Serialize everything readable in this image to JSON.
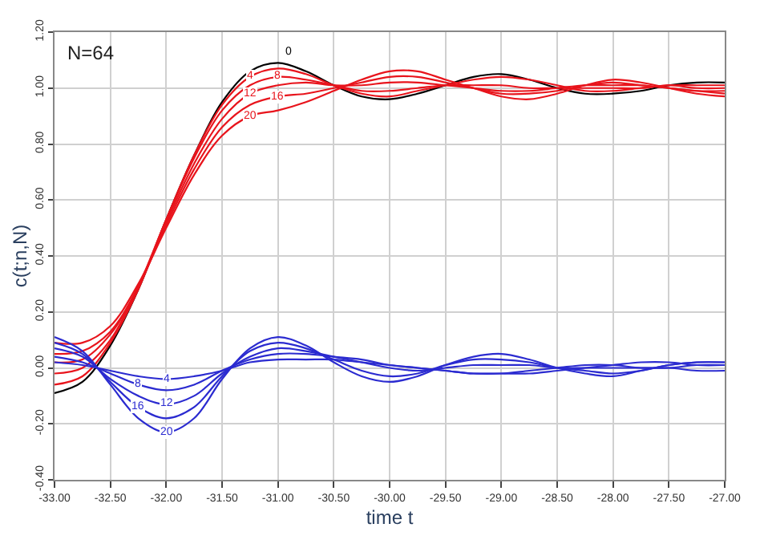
{
  "chart_data": {
    "type": "line",
    "xlabel": "time t",
    "ylabel": "c(t;n,N)",
    "annotations": [
      "N=64"
    ],
    "x": [
      -33,
      -32.75,
      -32.5,
      -32.25,
      -32,
      -31.75,
      -31.5,
      -31.25,
      -31,
      -30.75,
      -30.5,
      -30.25,
      -30,
      -29.75,
      -29.5,
      -29.25,
      -29,
      -28.75,
      -28.5,
      -28.25,
      -28,
      -27.75,
      -27.5,
      -27.25,
      -27
    ],
    "series": [
      {
        "name": "0",
        "color": "#000000",
        "values": [
          -0.09,
          -0.05,
          0.08,
          0.28,
          0.53,
          0.76,
          0.95,
          1.06,
          1.09,
          1.06,
          1.01,
          0.97,
          0.96,
          0.98,
          1.01,
          1.04,
          1.05,
          1.03,
          1.0,
          0.98,
          0.98,
          0.99,
          1.01,
          1.02,
          1.02
        ]
      },
      {
        "name": "4",
        "color": "#e8141c",
        "values": [
          -0.06,
          -0.03,
          0.09,
          0.28,
          0.53,
          0.76,
          0.94,
          1.04,
          1.07,
          1.05,
          1.01,
          0.98,
          0.97,
          0.99,
          1.01,
          1.03,
          1.04,
          1.03,
          1.01,
          0.99,
          0.99,
          1.0,
          1.01,
          1.01,
          1.01
        ]
      },
      {
        "name": "8",
        "color": "#e8141c",
        "values": [
          -0.02,
          0.0,
          0.1,
          0.29,
          0.53,
          0.75,
          0.92,
          1.01,
          1.04,
          1.03,
          1.01,
          0.99,
          0.99,
          1.0,
          1.01,
          1.01,
          1.01,
          1.0,
          1.0,
          1.0,
          1.0,
          1.0,
          1.01,
          1.0,
          1.0
        ]
      },
      {
        "name": "12",
        "color": "#e8141c",
        "values": [
          0.02,
          0.03,
          0.12,
          0.29,
          0.52,
          0.73,
          0.89,
          0.98,
          1.01,
          1.02,
          1.01,
          1.01,
          1.02,
          1.02,
          1.01,
          1.0,
          0.99,
          0.99,
          1.0,
          1.01,
          1.01,
          1.01,
          1.0,
          0.99,
          0.99
        ]
      },
      {
        "name": "16",
        "color": "#e8141c",
        "values": [
          0.05,
          0.06,
          0.13,
          0.29,
          0.51,
          0.71,
          0.86,
          0.94,
          0.97,
          0.98,
          1.0,
          1.02,
          1.04,
          1.04,
          1.02,
          1.0,
          0.98,
          0.98,
          0.99,
          1.01,
          1.02,
          1.01,
          1.0,
          0.99,
          0.98
        ]
      },
      {
        "name": "20",
        "color": "#e8141c",
        "values": [
          0.09,
          0.09,
          0.15,
          0.3,
          0.5,
          0.69,
          0.83,
          0.9,
          0.92,
          0.95,
          0.99,
          1.03,
          1.06,
          1.06,
          1.03,
          1.0,
          0.97,
          0.96,
          0.98,
          1.01,
          1.03,
          1.02,
          1.0,
          0.98,
          0.97
        ]
      },
      {
        "name": "4",
        "color": "#2b2bd0",
        "values": [
          0.02,
          0.01,
          -0.01,
          -0.03,
          -0.04,
          -0.03,
          -0.01,
          0.02,
          0.03,
          0.03,
          0.03,
          0.02,
          0.01,
          0.0,
          -0.01,
          -0.02,
          -0.02,
          -0.02,
          -0.01,
          0.0,
          0.01,
          0.02,
          0.02,
          0.01,
          0.01
        ]
      },
      {
        "name": "8",
        "color": "#2b2bd0",
        "values": [
          0.04,
          0.02,
          -0.02,
          -0.06,
          -0.08,
          -0.06,
          -0.01,
          0.03,
          0.05,
          0.05,
          0.04,
          0.03,
          0.01,
          0.0,
          -0.01,
          -0.02,
          -0.02,
          -0.01,
          0.0,
          0.01,
          0.01,
          0.0,
          0.0,
          -0.01,
          -0.01
        ]
      },
      {
        "name": "12",
        "color": "#2b2bd0",
        "values": [
          0.07,
          0.04,
          -0.04,
          -0.1,
          -0.13,
          -0.1,
          -0.02,
          0.04,
          0.07,
          0.06,
          0.04,
          0.02,
          0.0,
          -0.01,
          0.0,
          0.01,
          0.01,
          0.01,
          0.0,
          0.0,
          0.0,
          0.0,
          0.0,
          0.01,
          0.01
        ]
      },
      {
        "name": "16",
        "color": "#2b2bd0",
        "values": [
          0.09,
          0.05,
          -0.05,
          -0.14,
          -0.18,
          -0.14,
          -0.03,
          0.06,
          0.09,
          0.07,
          0.03,
          -0.01,
          -0.03,
          -0.02,
          0.01,
          0.03,
          0.03,
          0.02,
          0.0,
          -0.01,
          -0.02,
          -0.01,
          0.01,
          0.02,
          0.02
        ]
      },
      {
        "name": "20",
        "color": "#2b2bd0",
        "values": [
          0.11,
          0.06,
          -0.06,
          -0.18,
          -0.23,
          -0.18,
          -0.04,
          0.07,
          0.11,
          0.08,
          0.02,
          -0.03,
          -0.05,
          -0.03,
          0.01,
          0.04,
          0.05,
          0.03,
          0.0,
          -0.02,
          -0.03,
          -0.01,
          0.01,
          0.02,
          0.02
        ]
      }
    ],
    "xlim": [
      -33,
      -27
    ],
    "xticks": [
      {
        "value": -33,
        "label": "-33.00"
      },
      {
        "value": -32.5,
        "label": "-32.50"
      },
      {
        "value": -32,
        "label": "-32.00"
      },
      {
        "value": -31.5,
        "label": "-31.50"
      },
      {
        "value": -31,
        "label": "-31.00"
      },
      {
        "value": -30.5,
        "label": "-30.50"
      },
      {
        "value": -30,
        "label": "-30.00"
      },
      {
        "value": -29.5,
        "label": "-29.50"
      },
      {
        "value": -29,
        "label": "-29.00"
      },
      {
        "value": -28.5,
        "label": "-28.50"
      },
      {
        "value": -28,
        "label": "-28.00"
      },
      {
        "value": -27.5,
        "label": "-27.50"
      },
      {
        "value": -27,
        "label": "-27.00"
      }
    ],
    "ylim": [
      -0.4,
      1.2
    ],
    "yticks": [
      {
        "value": -0.4,
        "label": "-0.40"
      },
      {
        "value": -0.2,
        "label": "-0.20"
      },
      {
        "value": 0,
        "label": "0.00"
      },
      {
        "value": 0.2,
        "label": "0.20"
      },
      {
        "value": 0.4,
        "label": "0.40"
      },
      {
        "value": 0.6,
        "label": "0.60"
      },
      {
        "value": 0.8,
        "label": "0.80"
      },
      {
        "value": 1.0,
        "label": "1.00"
      },
      {
        "value": 1.2,
        "label": "1.20"
      }
    ],
    "grid": true,
    "legend": false,
    "marker": "none",
    "line_style": "solid"
  }
}
